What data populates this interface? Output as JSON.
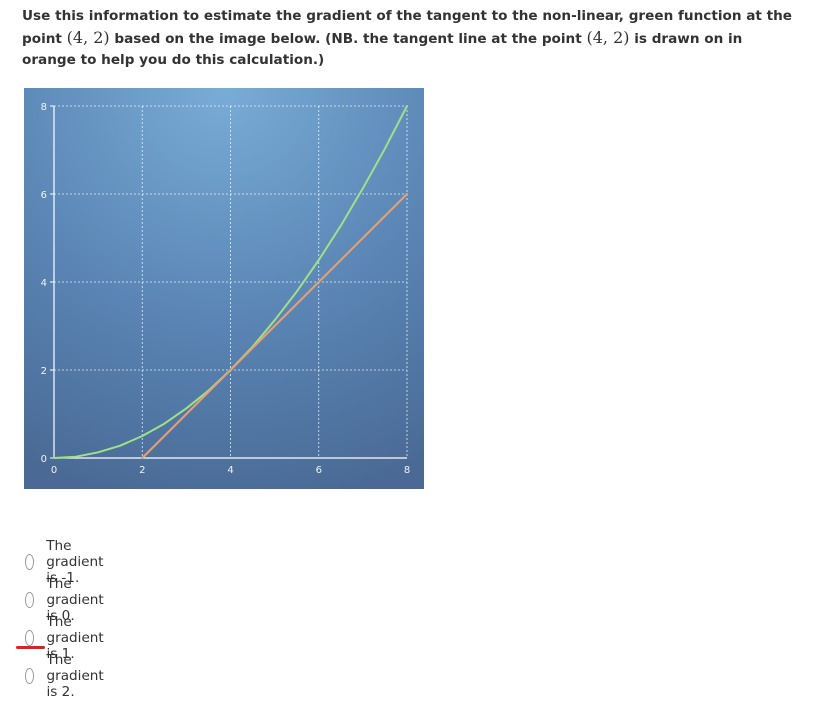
{
  "question": {
    "part1": "Use this information to estimate the gradient of the tangent to the non-linear, green function at the point ",
    "point1": "(4, 2)",
    "part2": " based on the image below. (NB. the tangent line at the point ",
    "point2": "(4, 2)",
    "part3": " is drawn on in orange to help you do this calculation.)"
  },
  "chart_data": {
    "type": "line",
    "xlim": [
      0,
      8
    ],
    "ylim": [
      0,
      8
    ],
    "x_ticks": [
      "0",
      "2",
      "4",
      "6",
      "8"
    ],
    "y_ticks": [
      "0",
      "2",
      "4",
      "6",
      "8"
    ],
    "grid": true,
    "series": [
      {
        "color": "#9fe08a",
        "points": [
          [
            0,
            0
          ],
          [
            0.5,
            0.03
          ],
          [
            1,
            0.13
          ],
          [
            1.5,
            0.28
          ],
          [
            2,
            0.5
          ],
          [
            2.5,
            0.78
          ],
          [
            3,
            1.13
          ],
          [
            3.5,
            1.53
          ],
          [
            4,
            2
          ],
          [
            4.5,
            2.53
          ],
          [
            5,
            3.13
          ],
          [
            5.5,
            3.78
          ],
          [
            6,
            4.5
          ],
          [
            6.5,
            5.28
          ],
          [
            7,
            6.13
          ],
          [
            7.5,
            7.03
          ],
          [
            8,
            8
          ]
        ]
      },
      {
        "color": "#e8a070",
        "points": [
          [
            2,
            0
          ],
          [
            8,
            6
          ]
        ]
      }
    ]
  },
  "options": [
    {
      "label": "The gradient is -1."
    },
    {
      "label": "The gradient is 0."
    },
    {
      "label": "The gradient is 1."
    },
    {
      "label": "The gradient is 2."
    }
  ],
  "colors": {
    "accent_underline": "#e0201b"
  }
}
